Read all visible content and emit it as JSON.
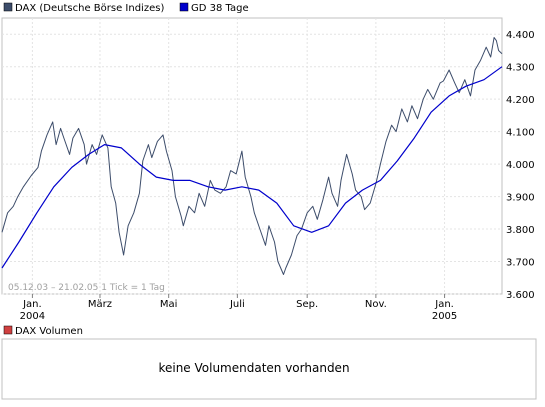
{
  "chart_data": {
    "type": "line",
    "legend": [
      {
        "name": "DAX (Deutsche Börse Indizes)",
        "color": "#3d4d6b"
      },
      {
        "name": "GD 38 Tage",
        "color": "#0000cc"
      }
    ],
    "info": "05.12.03 – 21.02.05   1 Tick = 1 Tag",
    "ylim": [
      3600,
      4450
    ],
    "y_ticks": [
      "4.400",
      "4.300",
      "4.200",
      "4.100",
      "4.000",
      "3.900",
      "3.800",
      "3.700",
      "3.600"
    ],
    "y_tick_values": [
      4400,
      4300,
      4200,
      4100,
      4000,
      3900,
      3800,
      3700,
      3600
    ],
    "x_range": [
      "2003-12-05",
      "2005-02-21"
    ],
    "x_ticks": [
      {
        "date": "2004-01-01",
        "label": "Jan.",
        "sublabel": "2004"
      },
      {
        "date": "2004-03-01",
        "label": "März",
        "sublabel": ""
      },
      {
        "date": "2004-05-01",
        "label": "Mai",
        "sublabel": ""
      },
      {
        "date": "2004-07-01",
        "label": "Juli",
        "sublabel": ""
      },
      {
        "date": "2004-09-01",
        "label": "Sep.",
        "sublabel": ""
      },
      {
        "date": "2004-11-01",
        "label": "Nov.",
        "sublabel": ""
      },
      {
        "date": "2005-01-01",
        "label": "Jan.",
        "sublabel": "2005"
      }
    ],
    "grid": true,
    "series": [
      {
        "name": "DAX (Deutsche Börse Indizes)",
        "color": "#3d4d6b",
        "points": [
          [
            "2003-12-05",
            3790
          ],
          [
            "2003-12-10",
            3850
          ],
          [
            "2003-12-15",
            3870
          ],
          [
            "2003-12-19",
            3900
          ],
          [
            "2003-12-24",
            3930
          ],
          [
            "2003-12-31",
            3965
          ],
          [
            "2004-01-06",
            3990
          ],
          [
            "2004-01-09",
            4040
          ],
          [
            "2004-01-14",
            4090
          ],
          [
            "2004-01-19",
            4130
          ],
          [
            "2004-01-22",
            4060
          ],
          [
            "2004-01-26",
            4110
          ],
          [
            "2004-01-29",
            4080
          ],
          [
            "2004-02-03",
            4030
          ],
          [
            "2004-02-06",
            4080
          ],
          [
            "2004-02-11",
            4110
          ],
          [
            "2004-02-16",
            4060
          ],
          [
            "2004-02-18",
            4000
          ],
          [
            "2004-02-23",
            4060
          ],
          [
            "2004-02-27",
            4030
          ],
          [
            "2004-03-03",
            4090
          ],
          [
            "2004-03-08",
            4050
          ],
          [
            "2004-03-11",
            3930
          ],
          [
            "2004-03-15",
            3880
          ],
          [
            "2004-03-18",
            3790
          ],
          [
            "2004-03-22",
            3720
          ],
          [
            "2004-03-26",
            3810
          ],
          [
            "2004-03-31",
            3850
          ],
          [
            "2004-04-05",
            3910
          ],
          [
            "2004-04-08",
            4010
          ],
          [
            "2004-04-13",
            4060
          ],
          [
            "2004-04-16",
            4020
          ],
          [
            "2004-04-21",
            4070
          ],
          [
            "2004-04-26",
            4090
          ],
          [
            "2004-04-29",
            4040
          ],
          [
            "2004-05-04",
            3980
          ],
          [
            "2004-05-07",
            3900
          ],
          [
            "2004-05-12",
            3840
          ],
          [
            "2004-05-14",
            3810
          ],
          [
            "2004-05-19",
            3870
          ],
          [
            "2004-05-24",
            3850
          ],
          [
            "2004-05-28",
            3910
          ],
          [
            "2004-06-02",
            3870
          ],
          [
            "2004-06-07",
            3950
          ],
          [
            "2004-06-11",
            3920
          ],
          [
            "2004-06-16",
            3910
          ],
          [
            "2004-06-21",
            3930
          ],
          [
            "2004-06-25",
            3980
          ],
          [
            "2004-06-30",
            3970
          ],
          [
            "2004-07-05",
            4040
          ],
          [
            "2004-07-08",
            3960
          ],
          [
            "2004-07-13",
            3900
          ],
          [
            "2004-07-16",
            3850
          ],
          [
            "2004-07-21",
            3800
          ],
          [
            "2004-07-26",
            3750
          ],
          [
            "2004-07-29",
            3810
          ],
          [
            "2004-08-03",
            3760
          ],
          [
            "2004-08-06",
            3700
          ],
          [
            "2004-08-11",
            3660
          ],
          [
            "2004-08-13",
            3680
          ],
          [
            "2004-08-18",
            3720
          ],
          [
            "2004-08-23",
            3780
          ],
          [
            "2004-08-27",
            3800
          ],
          [
            "2004-09-01",
            3850
          ],
          [
            "2004-09-06",
            3870
          ],
          [
            "2004-09-10",
            3830
          ],
          [
            "2004-09-15",
            3890
          ],
          [
            "2004-09-20",
            3960
          ],
          [
            "2004-09-23",
            3910
          ],
          [
            "2004-09-28",
            3870
          ],
          [
            "2004-10-01",
            3950
          ],
          [
            "2004-10-06",
            4030
          ],
          [
            "2004-10-11",
            3970
          ],
          [
            "2004-10-14",
            3920
          ],
          [
            "2004-10-19",
            3900
          ],
          [
            "2004-10-22",
            3860
          ],
          [
            "2004-10-27",
            3880
          ],
          [
            "2004-11-01",
            3940
          ],
          [
            "2004-11-05",
            4000
          ],
          [
            "2004-11-10",
            4070
          ],
          [
            "2004-11-15",
            4120
          ],
          [
            "2004-11-19",
            4100
          ],
          [
            "2004-11-24",
            4170
          ],
          [
            "2004-11-29",
            4130
          ],
          [
            "2004-12-03",
            4180
          ],
          [
            "2004-12-08",
            4140
          ],
          [
            "2004-12-13",
            4200
          ],
          [
            "2004-12-17",
            4230
          ],
          [
            "2004-12-22",
            4200
          ],
          [
            "2004-12-28",
            4250
          ],
          [
            "2004-12-31",
            4256
          ],
          [
            "2005-01-05",
            4290
          ],
          [
            "2005-01-10",
            4250
          ],
          [
            "2005-01-14",
            4220
          ],
          [
            "2005-01-19",
            4260
          ],
          [
            "2005-01-24",
            4210
          ],
          [
            "2005-01-28",
            4290
          ],
          [
            "2005-02-02",
            4320
          ],
          [
            "2005-02-07",
            4360
          ],
          [
            "2005-02-11",
            4330
          ],
          [
            "2005-02-14",
            4390
          ],
          [
            "2005-02-16",
            4380
          ],
          [
            "2005-02-18",
            4350
          ],
          [
            "2005-02-21",
            4340
          ]
        ]
      },
      {
        "name": "GD 38 Tage",
        "color": "#0000cc",
        "points": [
          [
            "2003-12-05",
            3680
          ],
          [
            "2003-12-20",
            3760
          ],
          [
            "2004-01-05",
            3850
          ],
          [
            "2004-01-20",
            3930
          ],
          [
            "2004-02-05",
            3990
          ],
          [
            "2004-02-20",
            4030
          ],
          [
            "2004-03-05",
            4060
          ],
          [
            "2004-03-20",
            4050
          ],
          [
            "2004-04-05",
            4000
          ],
          [
            "2004-04-20",
            3960
          ],
          [
            "2004-05-05",
            3950
          ],
          [
            "2004-05-20",
            3950
          ],
          [
            "2004-06-05",
            3930
          ],
          [
            "2004-06-20",
            3920
          ],
          [
            "2004-07-05",
            3930
          ],
          [
            "2004-07-20",
            3920
          ],
          [
            "2004-08-05",
            3880
          ],
          [
            "2004-08-20",
            3810
          ],
          [
            "2004-09-05",
            3790
          ],
          [
            "2004-09-20",
            3810
          ],
          [
            "2004-10-05",
            3880
          ],
          [
            "2004-10-20",
            3920
          ],
          [
            "2004-11-05",
            3950
          ],
          [
            "2004-11-20",
            4010
          ],
          [
            "2004-12-05",
            4080
          ],
          [
            "2004-12-20",
            4160
          ],
          [
            "2005-01-05",
            4210
          ],
          [
            "2005-01-20",
            4240
          ],
          [
            "2005-02-05",
            4260
          ],
          [
            "2005-02-21",
            4300
          ]
        ]
      }
    ]
  },
  "volume_panel": {
    "legend": "DAX Volumen",
    "legend_color": "#d04040",
    "message": "keine Volumendaten vorhanden"
  }
}
